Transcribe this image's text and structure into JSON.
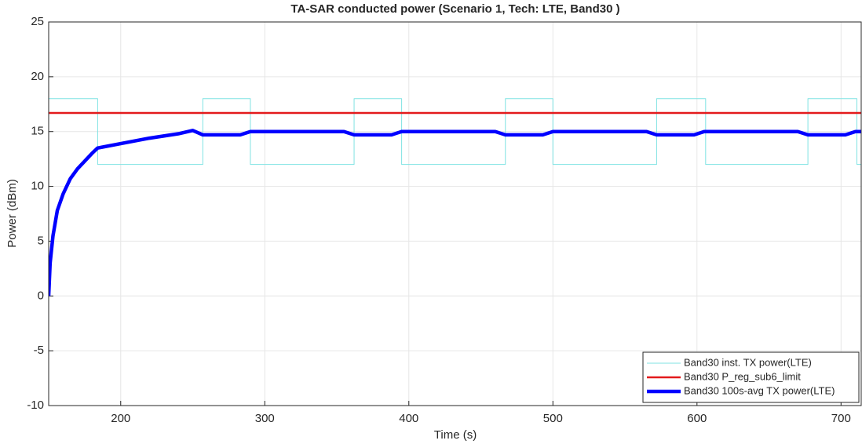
{
  "chart_data": {
    "type": "line",
    "title": "TA-SAR conducted power (Scenario 1, Tech: LTE, Band30 )",
    "xlabel": "Time (s)",
    "ylabel": "Power (dBm)",
    "xlim": [
      150,
      714
    ],
    "ylim": [
      -10,
      25
    ],
    "xticks": [
      200,
      300,
      400,
      500,
      600,
      700
    ],
    "yticks": [
      -10,
      -5,
      0,
      5,
      10,
      15,
      20,
      25
    ],
    "grid": true,
    "legend": "lower right",
    "series": [
      {
        "name": "Band30 inst. TX power(LTE)",
        "color": "#7fe3e3",
        "width": 1,
        "x": [
          150,
          184,
          184,
          257,
          257,
          290,
          290,
          362,
          362,
          395,
          395,
          467,
          467,
          500,
          500,
          572,
          572,
          606,
          606,
          677,
          677,
          711,
          711,
          714
        ],
        "values": [
          18,
          18,
          12,
          12,
          18,
          18,
          12,
          12,
          18,
          18,
          12,
          12,
          18,
          18,
          12,
          12,
          18,
          18,
          12,
          12,
          18,
          18,
          12,
          12
        ]
      },
      {
        "name": "Band30 P_reg_sub6_limit",
        "color": "#e31a1c",
        "width": 2.5,
        "x": [
          150,
          714
        ],
        "values": [
          16.7,
          16.7
        ]
      },
      {
        "name": "Band30 100s-avg TX power(LTE)",
        "color": "#0000ff",
        "width": 4.5,
        "x": [
          150,
          151,
          153,
          156,
          160,
          165,
          170,
          175,
          180,
          184,
          200,
          220,
          240,
          250,
          257,
          283,
          290,
          355,
          362,
          388,
          395,
          460,
          467,
          493,
          500,
          565,
          572,
          598,
          605,
          670,
          677,
          703,
          710,
          714
        ],
        "values": [
          0,
          3,
          5.5,
          7.8,
          9.3,
          10.7,
          11.6,
          12.3,
          13,
          13.5,
          13.9,
          14.4,
          14.8,
          15.1,
          14.7,
          14.7,
          15,
          15,
          14.7,
          14.7,
          15,
          15,
          14.7,
          14.7,
          15,
          15,
          14.7,
          14.7,
          15,
          15,
          14.7,
          14.7,
          15,
          15
        ]
      }
    ]
  }
}
